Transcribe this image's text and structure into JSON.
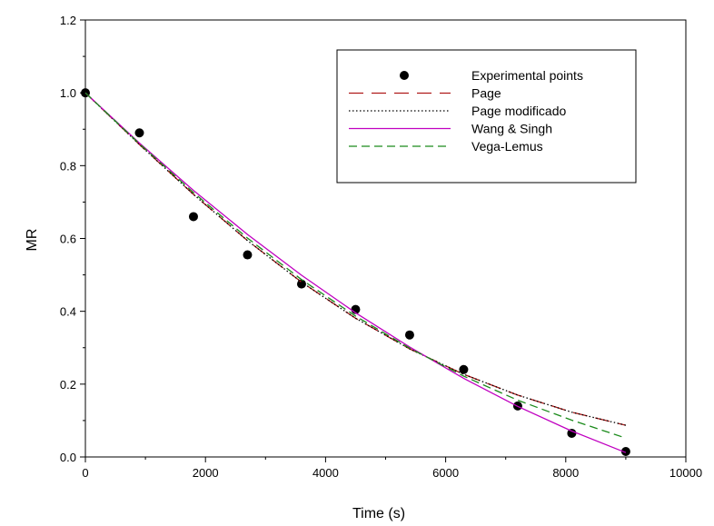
{
  "chart_data": {
    "type": "line",
    "title": "",
    "xlabel": "Time (s)",
    "ylabel": "MR",
    "xlim": [
      0,
      10000
    ],
    "ylim": [
      0.0,
      1.2
    ],
    "x_ticks": [
      0,
      2000,
      4000,
      6000,
      8000,
      10000
    ],
    "x_tick_labels": [
      "0",
      "2000",
      "4000",
      "6000",
      "8000",
      "10000"
    ],
    "y_ticks": [
      0.0,
      0.2,
      0.4,
      0.6,
      0.8,
      1.0,
      1.2
    ],
    "y_tick_labels": [
      "0.0",
      "0.2",
      "0.4",
      "0.6",
      "0.8",
      "1.0",
      "1.2"
    ],
    "grid": false,
    "legend_position": "top-right",
    "series": [
      {
        "name": "Experimental points",
        "kind": "scatter",
        "color": "#000000",
        "x": [
          0,
          900,
          1800,
          2700,
          3600,
          4500,
          5400,
          6300,
          7200,
          8100,
          9000
        ],
        "y": [
          1.0,
          0.89,
          0.66,
          0.555,
          0.475,
          0.405,
          0.335,
          0.24,
          0.14,
          0.065,
          0.015
        ]
      },
      {
        "name": "Page",
        "kind": "line",
        "style": "long-dash",
        "color": "#b01a1a",
        "x": [
          0,
          900,
          1800,
          2700,
          3600,
          4500,
          5400,
          6300,
          7200,
          8100,
          9000
        ],
        "y": [
          1.0,
          0.858,
          0.721,
          0.594,
          0.48,
          0.381,
          0.297,
          0.227,
          0.17,
          0.123,
          0.087
        ]
      },
      {
        "name": "Page modificado",
        "kind": "line",
        "style": "dotted",
        "color": "#000000",
        "x": [
          0,
          900,
          1800,
          2700,
          3600,
          4500,
          5400,
          6300,
          7200,
          8100,
          9000
        ],
        "y": [
          1.0,
          0.858,
          0.721,
          0.594,
          0.48,
          0.381,
          0.297,
          0.227,
          0.17,
          0.123,
          0.087
        ]
      },
      {
        "name": "Wang & Singh",
        "kind": "line",
        "style": "solid",
        "color": "#c000c0",
        "x": [
          0,
          900,
          1800,
          2700,
          3600,
          4500,
          5400,
          6300,
          7200,
          8100,
          9000
        ],
        "y": [
          1.0,
          0.862,
          0.732,
          0.611,
          0.499,
          0.396,
          0.302,
          0.216,
          0.139,
          0.071,
          0.012
        ]
      },
      {
        "name": "Vega-Lemus",
        "kind": "line",
        "style": "dashed",
        "color": "#1a8a1a",
        "x": [
          0,
          900,
          1800,
          2700,
          3600,
          4500,
          5400,
          6300,
          7200,
          8100,
          9000
        ],
        "y": [
          1.0,
          0.86,
          0.726,
          0.601,
          0.487,
          0.387,
          0.299,
          0.222,
          0.156,
          0.101,
          0.052
        ]
      }
    ]
  }
}
